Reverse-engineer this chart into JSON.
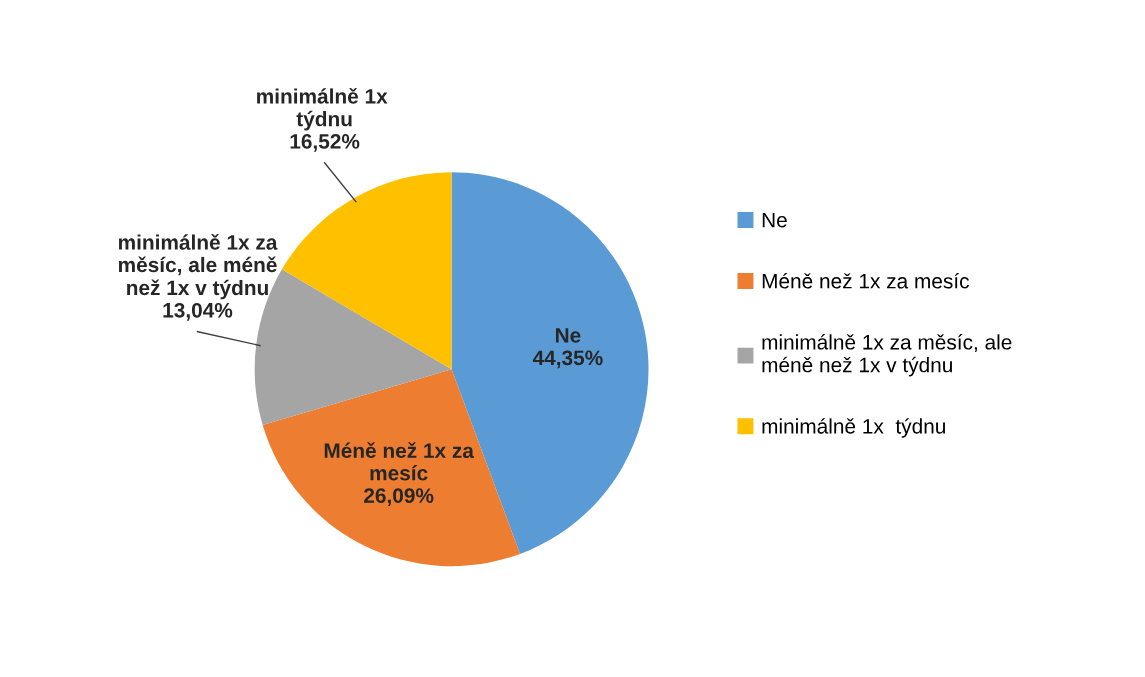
{
  "chart_data": {
    "type": "pie",
    "categories": [
      "Ne",
      "Méně než 1x za mesíc",
      "minimálně 1x za měsíc, ale méně než 1x v týdnu",
      "minimálně 1x  týdnu"
    ],
    "values": [
      44.35,
      26.09,
      13.04,
      16.52
    ],
    "colors": [
      "#5b9bd5",
      "#ed7d31",
      "#a5a5a5",
      "#ffc000"
    ],
    "value_labels": [
      "44,35%",
      "26,09%",
      "13,04%",
      "16,52%"
    ],
    "legend": "right"
  }
}
